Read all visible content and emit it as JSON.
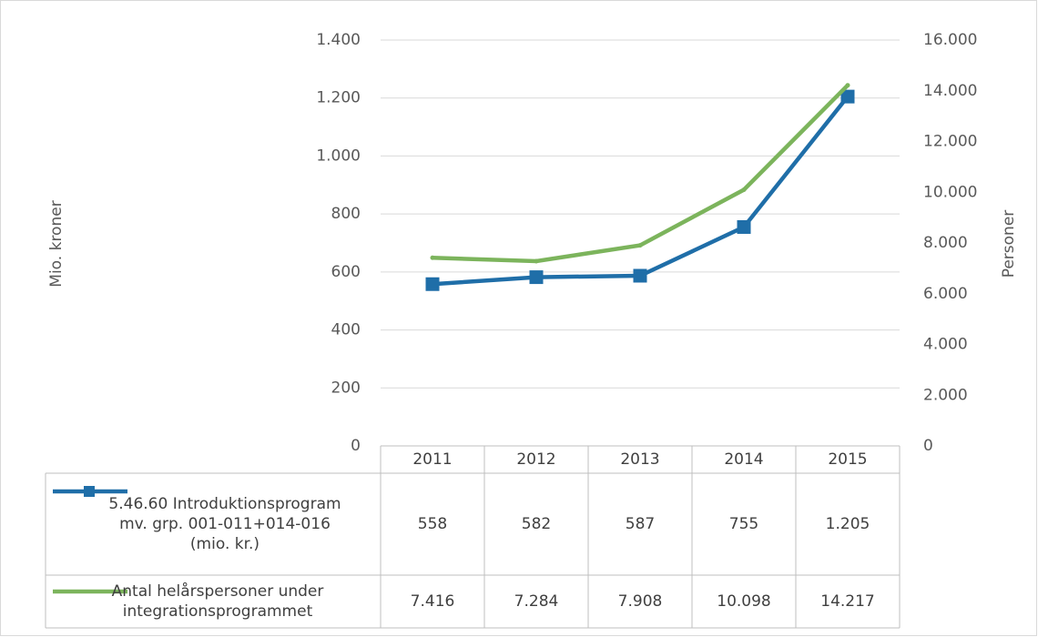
{
  "chart_data": {
    "type": "line",
    "y_label": "Mio. kroner",
    "y2_label": "Personer",
    "categories": [
      "2011",
      "2012",
      "2013",
      "2014",
      "2015"
    ],
    "series": [
      {
        "name": "5.46.60 Introduktionsprogram mv. grp. 001-011+014-016 (mio. kr.)",
        "color": "#1f6ea8",
        "marker": "square",
        "values": [
          558,
          582,
          587,
          755,
          1205
        ],
        "value_labels": [
          "558",
          "582",
          "587",
          "755",
          "1.205"
        ]
      },
      {
        "name": "Antal helårspersoner under integrationsprogrammet",
        "color": "#7cb45c",
        "axis": "y2",
        "values": [
          7416,
          7284,
          7908,
          10098,
          14217
        ],
        "value_labels": [
          "7.416",
          "7.284",
          "7.908",
          "10.098",
          "14.217"
        ]
      }
    ],
    "ylim": [
      0,
      1400
    ],
    "yticks": [
      0,
      200,
      400,
      600,
      800,
      {
        "value": 1000,
        "label": "1.000"
      },
      {
        "value": 1200,
        "label": "1.200"
      },
      {
        "value": 1400,
        "label": "1.400"
      }
    ],
    "y2lim": [
      0,
      16000
    ],
    "y2ticks": [
      0,
      {
        "value": 2000,
        "label": "2.000"
      },
      {
        "value": 4000,
        "label": "4.000"
      },
      {
        "value": 6000,
        "label": "6.000"
      },
      {
        "value": 8000,
        "label": "8.000"
      },
      {
        "value": 10000,
        "label": "10.000"
      },
      {
        "value": 12000,
        "label": "12.000"
      },
      {
        "value": 14000,
        "label": "14.000"
      },
      {
        "value": 16000,
        "label": "16.000"
      }
    ],
    "grid": true
  }
}
